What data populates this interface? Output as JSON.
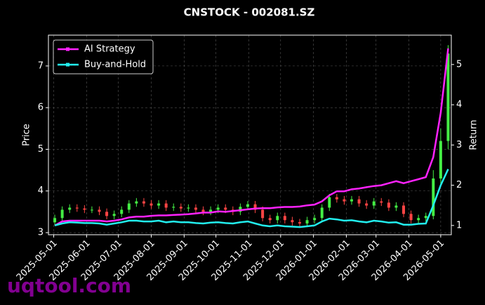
{
  "chart_data": {
    "type": "candlestick",
    "title": "CNSTOCK - 002081.SZ",
    "ylabel": "Price",
    "y2label": "Return",
    "watermark": "uqtool.com",
    "x": [
      "2025-05-02",
      "2025-05-09",
      "2025-05-16",
      "2025-05-23",
      "2025-05-30",
      "2025-06-06",
      "2025-06-13",
      "2025-06-20",
      "2025-06-27",
      "2025-07-04",
      "2025-07-11",
      "2025-07-18",
      "2025-07-25",
      "2025-08-01",
      "2025-08-08",
      "2025-08-15",
      "2025-08-22",
      "2025-08-29",
      "2025-09-05",
      "2025-09-12",
      "2025-09-19",
      "2025-09-26",
      "2025-10-03",
      "2025-10-10",
      "2025-10-17",
      "2025-10-24",
      "2025-10-31",
      "2025-11-07",
      "2025-11-14",
      "2025-11-21",
      "2025-11-28",
      "2025-12-05",
      "2025-12-12",
      "2025-12-19",
      "2025-12-26",
      "2026-01-02",
      "2026-01-09",
      "2026-01-16",
      "2026-01-23",
      "2026-01-30",
      "2026-02-06",
      "2026-02-13",
      "2026-02-20",
      "2026-02-27",
      "2026-03-06",
      "2026-03-13",
      "2026-03-20",
      "2026-03-27",
      "2026-04-03",
      "2026-04-10",
      "2026-04-17",
      "2026-04-24",
      "2026-05-01",
      "2026-05-08"
    ],
    "open": [
      3.25,
      3.35,
      3.55,
      3.6,
      3.58,
      3.55,
      3.55,
      3.5,
      3.4,
      3.45,
      3.55,
      3.7,
      3.75,
      3.7,
      3.65,
      3.7,
      3.6,
      3.62,
      3.58,
      3.6,
      3.55,
      3.5,
      3.55,
      3.6,
      3.55,
      3.5,
      3.62,
      3.68,
      3.55,
      3.35,
      3.3,
      3.4,
      3.3,
      3.25,
      3.22,
      3.3,
      3.35,
      3.6,
      3.85,
      3.8,
      3.75,
      3.8,
      3.7,
      3.65,
      3.75,
      3.72,
      3.6,
      3.65,
      3.45,
      3.3,
      3.35,
      3.4,
      4.3,
      5.2
    ],
    "close": [
      3.35,
      3.55,
      3.6,
      3.58,
      3.55,
      3.55,
      3.5,
      3.4,
      3.45,
      3.55,
      3.7,
      3.75,
      3.7,
      3.65,
      3.7,
      3.6,
      3.62,
      3.58,
      3.6,
      3.55,
      3.5,
      3.55,
      3.6,
      3.55,
      3.5,
      3.62,
      3.68,
      3.55,
      3.35,
      3.3,
      3.4,
      3.3,
      3.25,
      3.22,
      3.3,
      3.35,
      3.6,
      3.85,
      3.8,
      3.75,
      3.8,
      3.7,
      3.65,
      3.75,
      3.72,
      3.6,
      3.65,
      3.45,
      3.3,
      3.35,
      3.4,
      4.3,
      5.2,
      7.3
    ],
    "high": [
      3.43,
      3.63,
      3.68,
      3.68,
      3.66,
      3.63,
      3.63,
      3.58,
      3.53,
      3.63,
      3.78,
      3.83,
      3.83,
      3.78,
      3.78,
      3.78,
      3.7,
      3.7,
      3.68,
      3.68,
      3.63,
      3.63,
      3.68,
      3.68,
      3.63,
      3.7,
      3.76,
      3.76,
      3.63,
      3.43,
      3.48,
      3.48,
      3.38,
      3.33,
      3.38,
      3.43,
      3.68,
      3.93,
      3.93,
      3.88,
      3.88,
      3.88,
      3.78,
      3.83,
      3.83,
      3.8,
      3.73,
      3.73,
      3.53,
      3.43,
      3.48,
      4.5,
      5.5,
      7.5
    ],
    "low": [
      3.17,
      3.27,
      3.47,
      3.5,
      3.47,
      3.47,
      3.42,
      3.32,
      3.32,
      3.37,
      3.47,
      3.62,
      3.62,
      3.57,
      3.57,
      3.52,
      3.52,
      3.5,
      3.5,
      3.47,
      3.42,
      3.42,
      3.47,
      3.47,
      3.42,
      3.42,
      3.54,
      3.47,
      3.27,
      3.22,
      3.22,
      3.22,
      3.17,
      3.14,
      3.14,
      3.22,
      3.27,
      3.52,
      3.72,
      3.67,
      3.67,
      3.62,
      3.57,
      3.57,
      3.64,
      3.52,
      3.52,
      3.37,
      3.22,
      3.22,
      3.27,
      3.32,
      4.1,
      5.0
    ],
    "up_color": "#44ee44",
    "down_color": "#ff4444",
    "series": [
      {
        "name": "AI Strategy",
        "color": "#ff22ff",
        "axis": "y2",
        "values": [
          1.0,
          1.1,
          1.12,
          1.12,
          1.12,
          1.12,
          1.12,
          1.1,
          1.12,
          1.15,
          1.2,
          1.22,
          1.22,
          1.24,
          1.25,
          1.25,
          1.26,
          1.27,
          1.28,
          1.3,
          1.32,
          1.32,
          1.35,
          1.34,
          1.36,
          1.38,
          1.4,
          1.42,
          1.43,
          1.43,
          1.45,
          1.46,
          1.46,
          1.47,
          1.5,
          1.52,
          1.6,
          1.75,
          1.85,
          1.85,
          1.9,
          1.92,
          1.95,
          1.98,
          2.0,
          2.05,
          2.1,
          2.05,
          2.1,
          2.15,
          2.2,
          2.7,
          3.8,
          5.4
        ]
      },
      {
        "name": "Buy-and-Hold",
        "color": "#22eeee",
        "axis": "y2",
        "values": [
          1.0,
          1.05,
          1.08,
          1.07,
          1.06,
          1.06,
          1.05,
          1.02,
          1.05,
          1.08,
          1.12,
          1.12,
          1.1,
          1.1,
          1.12,
          1.08,
          1.1,
          1.08,
          1.08,
          1.06,
          1.05,
          1.07,
          1.08,
          1.06,
          1.05,
          1.08,
          1.1,
          1.05,
          1.0,
          0.98,
          1.0,
          0.98,
          0.97,
          0.96,
          0.98,
          1.0,
          1.1,
          1.17,
          1.15,
          1.12,
          1.13,
          1.1,
          1.08,
          1.12,
          1.1,
          1.07,
          1.08,
          1.02,
          1.02,
          1.04,
          1.05,
          1.5,
          2.0,
          2.4
        ]
      }
    ],
    "xlim": [
      "2025-04-26",
      "2026-05-11"
    ],
    "xticks": [
      "2025-05-01",
      "2025-06-01",
      "2025-07-01",
      "2025-08-01",
      "2025-09-01",
      "2025-10-01",
      "2025-11-01",
      "2025-12-01",
      "2026-01-01",
      "2026-02-01",
      "2026-03-01",
      "2026-04-01",
      "2026-05-01"
    ],
    "ylim": [
      2.95,
      7.74
    ],
    "yticks": [
      3,
      4,
      5,
      6,
      7
    ],
    "y2lim": [
      0.77,
      5.73
    ],
    "y2ticks": [
      1,
      2,
      3,
      4,
      5
    ],
    "grid": true,
    "legend": "upper left"
  }
}
